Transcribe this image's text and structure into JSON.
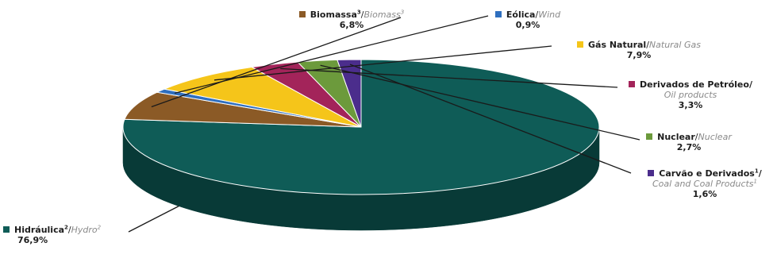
{
  "chart_data": {
    "type": "pie",
    "title": "",
    "slices": [
      {
        "label_pt": "Hidráulica",
        "sup_pt": "2",
        "label_en": "Hydro",
        "sup_en": "2",
        "value": 76.9,
        "value_label": "76,9%",
        "color": "#0f5c57",
        "dark": "#083a37"
      },
      {
        "label_pt": "Biomassa",
        "sup_pt": "3",
        "label_en": "Biomass",
        "sup_en": "3",
        "value": 6.8,
        "value_label": "6,8%",
        "color": "#8b5a26",
        "dark": "#573714"
      },
      {
        "label_pt": "Eólica",
        "sup_pt": "",
        "label_en": "Wind",
        "sup_en": "",
        "value": 0.9,
        "value_label": "0,9%",
        "color": "#2f6fbf",
        "dark": "#1c4478"
      },
      {
        "label_pt": "Gás Natural",
        "sup_pt": "",
        "label_en": "Natural Gas",
        "sup_en": "",
        "value": 7.9,
        "value_label": "7,9%",
        "color": "#f5c51a",
        "dark": "#b8900c"
      },
      {
        "label_pt": "Derivados de Petróleo",
        "sup_pt": "",
        "label_en": "Oil products",
        "sup_en": "",
        "value": 3.3,
        "value_label": "3,3%",
        "color": "#a3245a",
        "dark": "#661436"
      },
      {
        "label_pt": "Nuclear",
        "sup_pt": "",
        "label_en": "Nuclear",
        "sup_en": "",
        "value": 2.7,
        "value_label": "2,7%",
        "color": "#6c9a3c",
        "dark": "#436224"
      },
      {
        "label_pt": "Carvão e Derivados",
        "sup_pt": "1",
        "label_en": "Coal and Coal Products",
        "sup_en": "1",
        "value": 1.6,
        "value_label": "1,6%",
        "color": "#4b2d8c",
        "dark": "#2c1957"
      }
    ]
  }
}
